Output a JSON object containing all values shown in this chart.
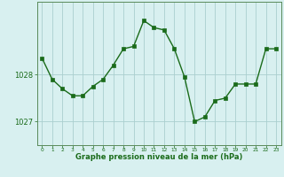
{
  "x": [
    0,
    1,
    2,
    3,
    4,
    5,
    6,
    7,
    8,
    9,
    10,
    11,
    12,
    13,
    14,
    15,
    16,
    17,
    18,
    19,
    20,
    21,
    22,
    23
  ],
  "y": [
    1028.35,
    1027.9,
    1027.7,
    1027.55,
    1027.55,
    1027.75,
    1027.9,
    1028.2,
    1028.55,
    1028.6,
    1029.15,
    1029.0,
    1028.95,
    1028.55,
    1027.95,
    1027.0,
    1027.1,
    1027.45,
    1027.5,
    1027.8,
    1027.8,
    1027.8,
    1028.55,
    1028.55
  ],
  "title": "Graphe pression niveau de la mer (hPa)",
  "xlabel_ticks": [
    "0",
    "1",
    "2",
    "3",
    "4",
    "5",
    "6",
    "7",
    "8",
    "9",
    "10",
    "11",
    "12",
    "13",
    "14",
    "15",
    "16",
    "17",
    "18",
    "19",
    "20",
    "21",
    "22",
    "23"
  ],
  "yticks": [
    1027,
    1028
  ],
  "ylim": [
    1026.5,
    1029.55
  ],
  "xlim": [
    -0.5,
    23.5
  ],
  "line_color": "#1a6b1a",
  "marker_color": "#1a6b1a",
  "bg_color": "#d8f0f0",
  "grid_color": "#aacfcf",
  "label_color": "#1a6b1a",
  "border_color": "#5a8a5a",
  "title_fontsize": 6.0,
  "ytick_fontsize": 6.0,
  "xtick_fontsize": 4.2
}
